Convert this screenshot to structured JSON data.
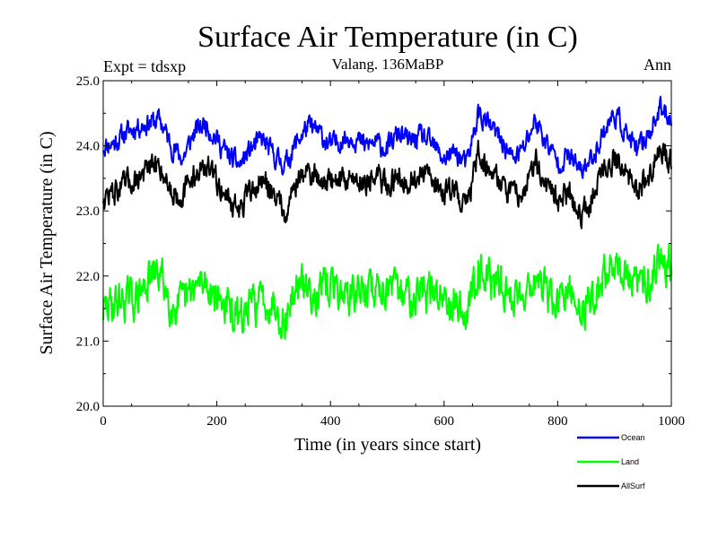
{
  "chart_data": {
    "type": "line",
    "title": "Surface Air Temperature (in C)",
    "subtitle": "Valang. 136MaBP",
    "left_label": "Expt = tdsxp",
    "right_label": "Ann",
    "xlabel": "Time (in years since start)",
    "ylabel": "Surface Air Temperature (in C)",
    "xlim": [
      0,
      1000
    ],
    "ylim": [
      20.0,
      25.0
    ],
    "xticks": [
      0,
      200,
      400,
      600,
      800,
      1000
    ],
    "xtick_labels": [
      "0",
      "200",
      "400",
      "600",
      "800",
      "1000"
    ],
    "yticks": [
      20.0,
      21.0,
      22.0,
      23.0,
      24.0,
      25.0
    ],
    "ytick_labels": [
      "20.0",
      "21.0",
      "22.0",
      "23.0",
      "24.0",
      "25.0"
    ],
    "grid": false,
    "legend_position": "bottom-right, outside plot",
    "x": [
      0,
      20,
      40,
      60,
      80,
      100,
      120,
      140,
      160,
      180,
      200,
      220,
      240,
      260,
      280,
      300,
      320,
      340,
      360,
      380,
      400,
      420,
      440,
      460,
      480,
      500,
      520,
      540,
      560,
      580,
      600,
      620,
      640,
      660,
      680,
      700,
      720,
      740,
      760,
      780,
      800,
      820,
      840,
      860,
      880,
      900,
      920,
      940,
      960,
      980,
      1000
    ],
    "series": [
      {
        "name": "Ocean",
        "color": "#0000ff",
        "values": [
          24.0,
          24.05,
          24.2,
          24.3,
          24.35,
          24.4,
          24.0,
          23.8,
          24.2,
          24.35,
          24.1,
          23.85,
          23.7,
          23.95,
          24.1,
          23.85,
          23.7,
          24.05,
          24.3,
          24.2,
          24.0,
          24.1,
          24.15,
          24.0,
          24.05,
          23.95,
          24.2,
          24.05,
          24.15,
          24.0,
          23.8,
          23.9,
          23.7,
          24.5,
          24.3,
          24.1,
          23.8,
          23.95,
          24.4,
          24.05,
          23.75,
          23.85,
          23.6,
          23.8,
          24.2,
          24.5,
          24.2,
          23.9,
          24.2,
          24.55,
          24.45
        ]
      },
      {
        "name": "Land",
        "color": "#00ff00",
        "values": [
          21.45,
          21.6,
          21.65,
          21.65,
          21.95,
          22.05,
          21.55,
          21.55,
          21.8,
          21.9,
          21.7,
          21.5,
          21.3,
          21.55,
          21.65,
          21.6,
          21.3,
          21.85,
          21.8,
          21.75,
          21.85,
          21.75,
          21.7,
          21.8,
          21.8,
          21.85,
          21.7,
          21.75,
          21.8,
          21.7,
          21.75,
          21.6,
          21.4,
          22.2,
          21.95,
          21.85,
          21.65,
          21.8,
          21.95,
          21.75,
          21.55,
          21.75,
          21.45,
          21.65,
          21.95,
          22.25,
          21.95,
          21.85,
          21.95,
          22.3,
          22.2
        ]
      },
      {
        "name": "AllSurf",
        "color": "#000000",
        "values": [
          23.2,
          23.3,
          23.4,
          23.5,
          23.65,
          23.7,
          23.3,
          23.25,
          23.55,
          23.7,
          23.45,
          23.2,
          23.0,
          23.3,
          23.45,
          23.3,
          23.0,
          23.45,
          23.6,
          23.5,
          23.45,
          23.5,
          23.5,
          23.45,
          23.5,
          23.4,
          23.55,
          23.45,
          23.55,
          23.45,
          23.3,
          23.35,
          23.05,
          23.9,
          23.65,
          23.45,
          23.2,
          23.35,
          23.75,
          23.45,
          23.15,
          23.3,
          22.95,
          23.2,
          23.6,
          23.85,
          23.55,
          23.3,
          23.55,
          23.9,
          23.8
        ]
      }
    ]
  }
}
